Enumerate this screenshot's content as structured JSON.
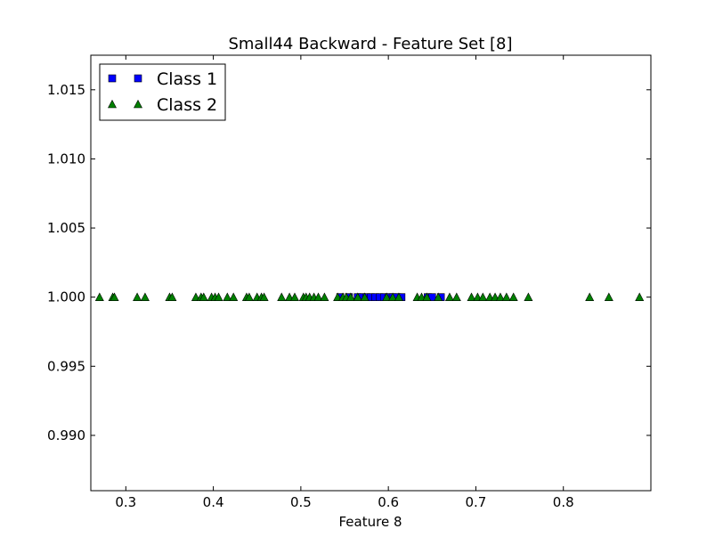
{
  "chart_data": {
    "type": "scatter",
    "title": "Small44 Backward - Feature Set [8]",
    "xlabel": "Feature 8",
    "ylabel": "",
    "xlim": [
      0.26,
      0.9
    ],
    "ylim": [
      0.986,
      1.0175
    ],
    "xticks": [
      0.3,
      0.4,
      0.5,
      0.6,
      0.7,
      0.8
    ],
    "xtick_labels": [
      "0.3",
      "0.4",
      "0.5",
      "0.6",
      "0.7",
      "0.8"
    ],
    "yticks": [
      0.99,
      0.995,
      1.0,
      1.005,
      1.01,
      1.015
    ],
    "ytick_labels": [
      "0.990",
      "0.995",
      "1.000",
      "1.005",
      "1.010",
      "1.015"
    ],
    "grid": false,
    "legend_position": "top-left",
    "series": [
      {
        "name": "Class 1",
        "marker": "square",
        "color": "#0000ff",
        "x": [
          0.545,
          0.555,
          0.565,
          0.57,
          0.575,
          0.58,
          0.585,
          0.59,
          0.595,
          0.6,
          0.605,
          0.61,
          0.615,
          0.645,
          0.65,
          0.66
        ],
        "y": [
          1,
          1,
          1,
          1,
          1,
          1,
          1,
          1,
          1,
          1,
          1,
          1,
          1,
          1,
          1,
          1
        ]
      },
      {
        "name": "Class 2",
        "marker": "triangle",
        "color": "#008000",
        "x": [
          0.27,
          0.285,
          0.287,
          0.313,
          0.322,
          0.35,
          0.353,
          0.38,
          0.386,
          0.389,
          0.398,
          0.402,
          0.406,
          0.416,
          0.423,
          0.438,
          0.441,
          0.45,
          0.455,
          0.458,
          0.478,
          0.487,
          0.493,
          0.503,
          0.506,
          0.51,
          0.515,
          0.52,
          0.527,
          0.542,
          0.548,
          0.552,
          0.557,
          0.565,
          0.573,
          0.598,
          0.605,
          0.612,
          0.633,
          0.638,
          0.644,
          0.657,
          0.67,
          0.678,
          0.695,
          0.702,
          0.708,
          0.716,
          0.722,
          0.728,
          0.735,
          0.743,
          0.76,
          0.83,
          0.852,
          0.887
        ],
        "y": [
          1,
          1,
          1,
          1,
          1,
          1,
          1,
          1,
          1,
          1,
          1,
          1,
          1,
          1,
          1,
          1,
          1,
          1,
          1,
          1,
          1,
          1,
          1,
          1,
          1,
          1,
          1,
          1,
          1,
          1,
          1,
          1,
          1,
          1,
          1,
          1,
          1,
          1,
          1,
          1,
          1,
          1,
          1,
          1,
          1,
          1,
          1,
          1,
          1,
          1,
          1,
          1,
          1,
          1,
          1,
          1
        ]
      }
    ]
  }
}
